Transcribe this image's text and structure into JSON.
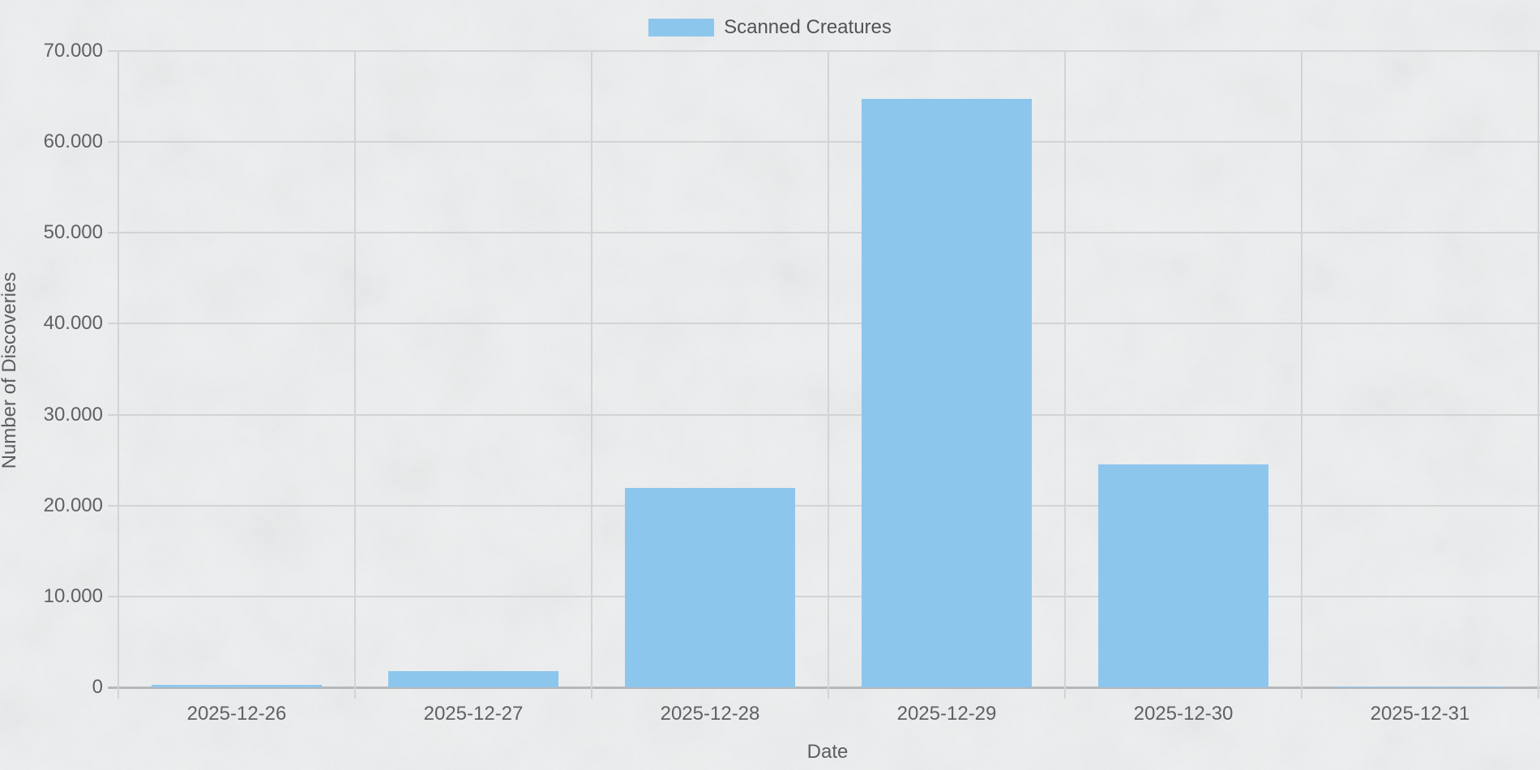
{
  "chart_data": {
    "type": "bar",
    "title": "",
    "legend_label": "Scanned Creatures",
    "legend_position": "top",
    "xlabel": "Date",
    "ylabel": "Number of Discoveries",
    "categories": [
      "2025-12-26",
      "2025-12-27",
      "2025-12-28",
      "2025-12-29",
      "2025-12-30",
      "2025-12-31"
    ],
    "series": [
      {
        "name": "Scanned Creatures",
        "values": [
          300,
          1800,
          21900,
          64700,
          24500,
          80
        ]
      }
    ],
    "ylim": [
      0,
      70000
    ],
    "grid": true,
    "y_ticks": [
      {
        "value": 0,
        "label": "0"
      },
      {
        "value": 10000,
        "label": "10.000"
      },
      {
        "value": 20000,
        "label": "20.000"
      },
      {
        "value": 30000,
        "label": "30.000"
      },
      {
        "value": 40000,
        "label": "40.000"
      },
      {
        "value": 50000,
        "label": "50.000"
      },
      {
        "value": 60000,
        "label": "60.000"
      },
      {
        "value": 70000,
        "label": "70.000"
      }
    ],
    "colors": {
      "bar": "#8dc6ed",
      "grid": "#d1d3d5",
      "axis": "#b5b7b9",
      "tick_text": "#5f6163",
      "title_text": "#5b5e60",
      "legend_text": "#515457",
      "background": "#edeff0"
    }
  }
}
